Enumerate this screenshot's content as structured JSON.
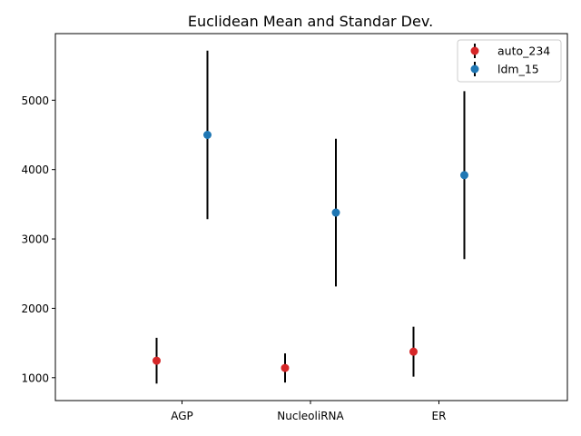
{
  "chart_data": {
    "type": "scatter",
    "title": "Euclidean Mean and Standar Dev.",
    "xlabel": "",
    "ylabel": "",
    "categories": [
      "AGP",
      "NucleoliRNA",
      "ER"
    ],
    "ylim": [
      670,
      5960
    ],
    "yticks": [
      1000,
      2000,
      3000,
      4000,
      5000
    ],
    "grid": false,
    "legend_position": "top-right",
    "series": [
      {
        "name": "auto_234",
        "color": "#d62728",
        "means": [
          1245,
          1140,
          1375
        ],
        "std": [
          330,
          210,
          360
        ]
      },
      {
        "name": "ldm_15",
        "color": "#1f77b4",
        "means": [
          4500,
          3380,
          3920
        ],
        "std": [
          1215,
          1065,
          1210
        ]
      }
    ]
  }
}
